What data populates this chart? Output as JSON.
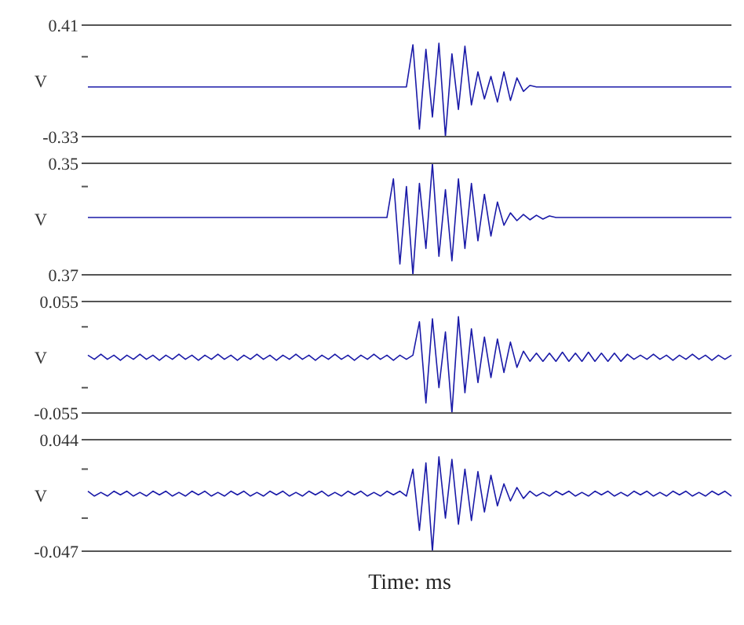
{
  "chart_data": [
    {
      "type": "line",
      "ylabel": "V",
      "categories": [
        null,
        null,
        null,
        null,
        null,
        null,
        null,
        null,
        null,
        null,
        null,
        null,
        null,
        null,
        null,
        null,
        null,
        null,
        null,
        null,
        null,
        null,
        null,
        null,
        null,
        null,
        null,
        null,
        null,
        null,
        null,
        null,
        null,
        null,
        null,
        null,
        null,
        null,
        null,
        null,
        null,
        null,
        null,
        null,
        null,
        null,
        null,
        null,
        null,
        null,
        null,
        null,
        null,
        null,
        null,
        null,
        null,
        null,
        null,
        null,
        null,
        null,
        null,
        null,
        null,
        null,
        null,
        null,
        null,
        null,
        null,
        null,
        null,
        null,
        null,
        null,
        null,
        null,
        null,
        null,
        null,
        null,
        null,
        null,
        null,
        null,
        null,
        null,
        null,
        null,
        null,
        null,
        null,
        null,
        null,
        null,
        null,
        null,
        null,
        null
      ],
      "series": [
        {
          "color": "#1a1aa8",
          "values": [
            0,
            0,
            0,
            0,
            0,
            0,
            0,
            0,
            0,
            0,
            0,
            0,
            0,
            0,
            0,
            0,
            0,
            0,
            0,
            0,
            0,
            0,
            0,
            0,
            0,
            0,
            0,
            0,
            0,
            0,
            0,
            0,
            0,
            0,
            0,
            0,
            0,
            0,
            0,
            0,
            0,
            0,
            0,
            0,
            0,
            0,
            0,
            0,
            0,
            0,
            0.28,
            -0.28,
            0.25,
            -0.2,
            0.29,
            -0.33,
            0.22,
            -0.15,
            0.27,
            -0.12,
            0.1,
            -0.08,
            0.07,
            -0.1,
            0.1,
            -0.09,
            0.06,
            -0.03,
            0.01,
            0,
            0,
            0,
            0,
            0,
            0,
            0,
            0,
            0,
            0,
            0,
            0,
            0,
            0,
            0,
            0,
            0,
            0,
            0,
            0,
            0,
            0,
            0,
            0,
            0,
            0,
            0,
            0,
            0,
            0,
            0
          ]
        }
      ],
      "ylim": [
        -0.33,
        0.41
      ],
      "yticks": [
        -0.33,
        {
          "value": 0.2,
          "label": null
        },
        0.41
      ],
      "tick_labels": "y",
      "marker": "none",
      "line_style": "solid",
      "legend": false
    },
    {
      "type": "line",
      "ylabel": "V",
      "categories": [
        null,
        null,
        null,
        null,
        null,
        null,
        null,
        null,
        null,
        null,
        null,
        null,
        null,
        null,
        null,
        null,
        null,
        null,
        null,
        null,
        null,
        null,
        null,
        null,
        null,
        null,
        null,
        null,
        null,
        null,
        null,
        null,
        null,
        null,
        null,
        null,
        null,
        null,
        null,
        null,
        null,
        null,
        null,
        null,
        null,
        null,
        null,
        null,
        null,
        null,
        null,
        null,
        null,
        null,
        null,
        null,
        null,
        null,
        null,
        null,
        null,
        null,
        null,
        null,
        null,
        null,
        null,
        null,
        null,
        null,
        null,
        null,
        null,
        null,
        null,
        null,
        null,
        null,
        null,
        null,
        null,
        null,
        null,
        null,
        null,
        null,
        null,
        null,
        null,
        null,
        null,
        null,
        null,
        null,
        null,
        null,
        null,
        null,
        null,
        null
      ],
      "series": [
        {
          "color": "#1a1aa8",
          "values": [
            0,
            0,
            0,
            0,
            0,
            0,
            0,
            0,
            0,
            0,
            0,
            0,
            0,
            0,
            0,
            0,
            0,
            0,
            0,
            0,
            0,
            0,
            0,
            0,
            0,
            0,
            0,
            0,
            0,
            0,
            0,
            0,
            0,
            0,
            0,
            0,
            0,
            0,
            0,
            0,
            0,
            0,
            0,
            0,
            0,
            0,
            0,
            0.25,
            -0.3,
            0.2,
            -0.37,
            0.22,
            -0.2,
            0.35,
            -0.25,
            0.18,
            -0.28,
            0.25,
            -0.2,
            0.22,
            -0.15,
            0.15,
            -0.12,
            0.1,
            -0.05,
            0.03,
            -0.02,
            0.02,
            -0.015,
            0.015,
            -0.01,
            0.01,
            0,
            0,
            0,
            0,
            0,
            0,
            0,
            0,
            0,
            0,
            0,
            0,
            0,
            0,
            0,
            0,
            0,
            0,
            0,
            0,
            0,
            0,
            0,
            0,
            0,
            0,
            0,
            0
          ]
        }
      ],
      "ylim": [
        -0.37,
        0.35
      ],
      "yticks": [
        {
          "value": -0.37,
          "label": "0.37"
        },
        {
          "value": 0.2,
          "label": null
        },
        0.35
      ],
      "tick_labels": "y",
      "marker": "none",
      "line_style": "solid",
      "legend": false
    },
    {
      "type": "line",
      "ylabel": "V",
      "categories": [
        null,
        null,
        null,
        null,
        null,
        null,
        null,
        null,
        null,
        null,
        null,
        null,
        null,
        null,
        null,
        null,
        null,
        null,
        null,
        null,
        null,
        null,
        null,
        null,
        null,
        null,
        null,
        null,
        null,
        null,
        null,
        null,
        null,
        null,
        null,
        null,
        null,
        null,
        null,
        null,
        null,
        null,
        null,
        null,
        null,
        null,
        null,
        null,
        null,
        null,
        null,
        null,
        null,
        null,
        null,
        null,
        null,
        null,
        null,
        null,
        null,
        null,
        null,
        null,
        null,
        null,
        null,
        null,
        null,
        null,
        null,
        null,
        null,
        null,
        null,
        null,
        null,
        null,
        null,
        null,
        null,
        null,
        null,
        null,
        null,
        null,
        null,
        null,
        null,
        null,
        null,
        null,
        null,
        null,
        null,
        null,
        null,
        null,
        null,
        null
      ],
      "series": [
        {
          "color": "#1a1aa8",
          "values": [
            0.002,
            -0.002,
            0.003,
            -0.002,
            0.002,
            -0.003,
            0.002,
            -0.002,
            0.003,
            -0.002,
            0.002,
            -0.003,
            0.002,
            -0.002,
            0.003,
            -0.002,
            0.002,
            -0.003,
            0.002,
            -0.002,
            0.003,
            -0.002,
            0.002,
            -0.003,
            0.002,
            -0.002,
            0.003,
            -0.002,
            0.002,
            -0.003,
            0.002,
            -0.002,
            0.003,
            -0.002,
            0.002,
            -0.003,
            0.002,
            -0.002,
            0.003,
            -0.002,
            0.002,
            -0.003,
            0.002,
            -0.002,
            0.003,
            -0.002,
            0.002,
            -0.003,
            0.002,
            -0.002,
            0.002,
            0.035,
            -0.045,
            0.038,
            -0.03,
            0.025,
            -0.055,
            0.04,
            -0.035,
            0.028,
            -0.025,
            0.02,
            -0.02,
            0.018,
            -0.015,
            0.015,
            -0.01,
            0.006,
            -0.004,
            0.004,
            -0.004,
            0.004,
            -0.004,
            0.005,
            -0.004,
            0.004,
            -0.004,
            0.005,
            -0.004,
            0.004,
            -0.004,
            0.004,
            -0.004,
            0.003,
            -0.002,
            0.002,
            -0.002,
            0.003,
            -0.002,
            0.002,
            -0.003,
            0.002,
            -0.002,
            0.003,
            -0.002,
            0.002,
            -0.003,
            0.002,
            -0.002,
            0.002
          ]
        }
      ],
      "ylim": [
        -0.055,
        0.055
      ],
      "yticks": [
        -0.055,
        {
          "value": -0.03,
          "label": null
        },
        {
          "value": 0.03,
          "label": null
        },
        0.055
      ],
      "tick_labels": "y",
      "marker": "none",
      "line_style": "solid",
      "legend": false
    },
    {
      "type": "line",
      "ylabel": "V",
      "xlabel": "Time: ms",
      "categories": [
        null,
        null,
        null,
        null,
        null,
        null,
        null,
        null,
        null,
        null,
        null,
        null,
        null,
        null,
        null,
        null,
        null,
        null,
        null,
        null,
        null,
        null,
        null,
        null,
        null,
        null,
        null,
        null,
        null,
        null,
        null,
        null,
        null,
        null,
        null,
        null,
        null,
        null,
        null,
        null,
        null,
        null,
        null,
        null,
        null,
        null,
        null,
        null,
        null,
        null,
        null,
        null,
        null,
        null,
        null,
        null,
        null,
        null,
        null,
        null,
        null,
        null,
        null,
        null,
        null,
        null,
        null,
        null,
        null,
        null,
        null,
        null,
        null,
        null,
        null,
        null,
        null,
        null,
        null,
        null,
        null,
        null,
        null,
        null,
        null,
        null,
        null,
        null,
        null,
        null,
        null,
        null,
        null,
        null,
        null,
        null,
        null,
        null,
        null,
        null
      ],
      "series": [
        {
          "color": "#1a1aa8",
          "values": [
            0.002,
            -0.002,
            0.001,
            -0.002,
            0.002,
            -0.001,
            0.002,
            -0.002,
            0.001,
            -0.002,
            0.002,
            -0.001,
            0.002,
            -0.002,
            0.001,
            -0.002,
            0.002,
            -0.001,
            0.002,
            -0.002,
            0.001,
            -0.002,
            0.002,
            -0.001,
            0.002,
            -0.002,
            0.001,
            -0.002,
            0.002,
            -0.001,
            0.002,
            -0.002,
            0.001,
            -0.002,
            0.002,
            -0.001,
            0.002,
            -0.002,
            0.001,
            -0.002,
            0.002,
            -0.001,
            0.002,
            -0.002,
            0.001,
            -0.002,
            0.002,
            -0.001,
            0.002,
            -0.002,
            0.02,
            -0.03,
            0.025,
            -0.047,
            0.03,
            -0.02,
            0.028,
            -0.025,
            0.02,
            -0.022,
            0.018,
            -0.015,
            0.015,
            -0.01,
            0.008,
            -0.006,
            0.005,
            -0.004,
            0.002,
            -0.002,
            0.001,
            -0.002,
            0.002,
            -0.001,
            0.002,
            -0.002,
            0.001,
            -0.002,
            0.002,
            -0.001,
            0.002,
            -0.002,
            0.001,
            -0.002,
            0.002,
            -0.001,
            0.002,
            -0.002,
            0.001,
            -0.002,
            0.002,
            -0.001,
            0.002,
            -0.002,
            0.001,
            -0.002,
            0.002,
            -0.001,
            0.002,
            -0.002
          ]
        }
      ],
      "ylim": [
        -0.047,
        0.044
      ],
      "yticks": [
        -0.047,
        {
          "value": -0.02,
          "label": null
        },
        {
          "value": 0.02,
          "label": null
        },
        0.044
      ],
      "tick_labels": "y",
      "marker": "none",
      "line_style": "solid",
      "legend": false
    }
  ]
}
